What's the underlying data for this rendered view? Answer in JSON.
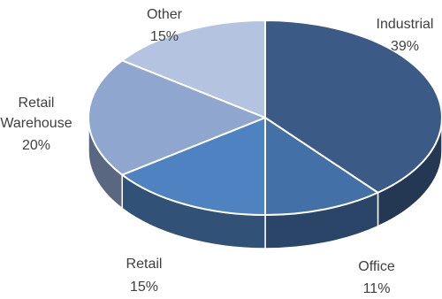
{
  "chart_data": {
    "type": "pie",
    "style": "3d-pie",
    "title": "",
    "slices": [
      {
        "category": "Industrial",
        "value": 39,
        "value_label": "39%",
        "color": "#3b5a86"
      },
      {
        "category": "Office",
        "value": 11,
        "value_label": "11%",
        "color": "#4470a8"
      },
      {
        "category": "Retail",
        "value": 15,
        "value_label": "15%",
        "color": "#4f82c0"
      },
      {
        "category": "Retail Warehouse",
        "category_lines": [
          "Retail",
          "Warehouse"
        ],
        "value": 20,
        "value_label": "20%",
        "color": "#8fa6cf"
      },
      {
        "category": "Other",
        "value": 15,
        "value_label": "15%",
        "color": "#b4c3df"
      }
    ],
    "start_angle_deg": -90,
    "direction": "clockwise",
    "legend": "none",
    "grid": false
  }
}
